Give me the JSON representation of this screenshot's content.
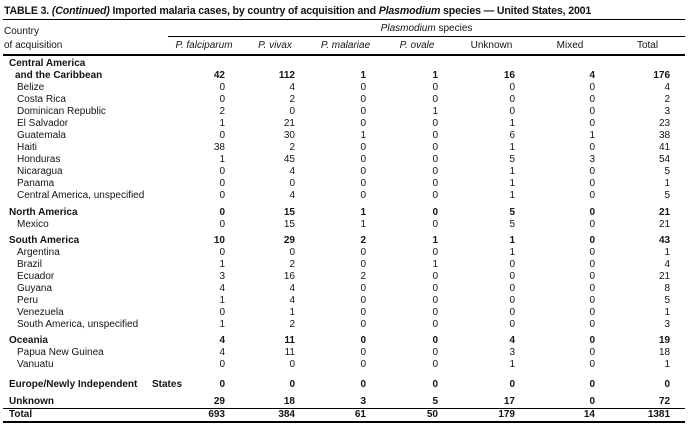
{
  "title": {
    "prefix": "TABLE 3. ",
    "continued": "(Continued)",
    "middle": " Imported malaria cases, by country of acquisition and ",
    "species_word": "Plasmodium",
    "suffix": " species — United States, 2001"
  },
  "header": {
    "country_line1": "Country",
    "country_line2": "of acquisition",
    "group_italic": "Plasmodium",
    "group_rest": " species",
    "columns": [
      {
        "label": "P. falciparum"
      },
      {
        "label": "P. vivax"
      },
      {
        "label": "P. malariae"
      },
      {
        "label": "P. ovale"
      },
      {
        "label": "Unknown"
      },
      {
        "label": "Mixed"
      },
      {
        "label": "Total"
      }
    ]
  },
  "rows": [
    {
      "label": "Central America",
      "indent": 0,
      "bold": true,
      "values": [
        "",
        "",
        "",
        "",
        "",
        "",
        ""
      ]
    },
    {
      "label": "and the Caribbean",
      "indent": 1,
      "bold": true,
      "values": [
        42,
        112,
        1,
        1,
        16,
        4,
        176
      ]
    },
    {
      "label": "Belize",
      "indent": 2,
      "bold": false,
      "values": [
        0,
        4,
        0,
        0,
        0,
        0,
        4
      ]
    },
    {
      "label": "Costa Rica",
      "indent": 2,
      "bold": false,
      "values": [
        0,
        2,
        0,
        0,
        0,
        0,
        2
      ]
    },
    {
      "label": "Dominican Republic",
      "indent": 2,
      "bold": false,
      "values": [
        2,
        0,
        0,
        1,
        0,
        0,
        3
      ]
    },
    {
      "label": "El Salvador",
      "indent": 2,
      "bold": false,
      "values": [
        1,
        21,
        0,
        0,
        1,
        0,
        23
      ]
    },
    {
      "label": "Guatemala",
      "indent": 2,
      "bold": false,
      "values": [
        0,
        30,
        1,
        0,
        6,
        1,
        38
      ]
    },
    {
      "label": "Haiti",
      "indent": 2,
      "bold": false,
      "values": [
        38,
        2,
        0,
        0,
        1,
        0,
        41
      ]
    },
    {
      "label": "Honduras",
      "indent": 2,
      "bold": false,
      "values": [
        1,
        45,
        0,
        0,
        5,
        3,
        54
      ]
    },
    {
      "label": "Nicaragua",
      "indent": 2,
      "bold": false,
      "values": [
        0,
        4,
        0,
        0,
        1,
        0,
        5
      ]
    },
    {
      "label": "Panama",
      "indent": 2,
      "bold": false,
      "values": [
        0,
        0,
        0,
        0,
        1,
        0,
        1
      ]
    },
    {
      "label": "Central America, unspecified",
      "indent": 2,
      "bold": false,
      "values": [
        0,
        4,
        0,
        0,
        1,
        0,
        5
      ]
    },
    {
      "label": "North America",
      "indent": 0,
      "bold": true,
      "gap_before": 5,
      "values": [
        0,
        15,
        1,
        0,
        5,
        0,
        21
      ]
    },
    {
      "label": "Mexico",
      "indent": 2,
      "bold": false,
      "values": [
        0,
        15,
        1,
        0,
        5,
        0,
        21
      ]
    },
    {
      "label": "South America",
      "indent": 0,
      "bold": true,
      "gap_before": 4,
      "values": [
        10,
        29,
        2,
        1,
        1,
        0,
        43
      ]
    },
    {
      "label": "Argentina",
      "indent": 2,
      "bold": false,
      "values": [
        0,
        0,
        0,
        0,
        1,
        0,
        1
      ]
    },
    {
      "label": "Brazil",
      "indent": 2,
      "bold": false,
      "values": [
        1,
        2,
        0,
        1,
        0,
        0,
        4
      ]
    },
    {
      "label": "Ecuador",
      "indent": 2,
      "bold": false,
      "values": [
        3,
        16,
        2,
        0,
        0,
        0,
        21
      ]
    },
    {
      "label": "Guyana",
      "indent": 2,
      "bold": false,
      "values": [
        4,
        4,
        0,
        0,
        0,
        0,
        8
      ]
    },
    {
      "label": "Peru",
      "indent": 2,
      "bold": false,
      "values": [
        1,
        4,
        0,
        0,
        0,
        0,
        5
      ]
    },
    {
      "label": "Venezuela",
      "indent": 2,
      "bold": false,
      "values": [
        0,
        1,
        0,
        0,
        0,
        0,
        1
      ]
    },
    {
      "label": "South America, unspecified",
      "indent": 2,
      "bold": false,
      "values": [
        1,
        2,
        0,
        0,
        0,
        0,
        3
      ]
    },
    {
      "label": "Oceania",
      "indent": 0,
      "bold": true,
      "gap_before": 4,
      "values": [
        4,
        11,
        0,
        0,
        4,
        0,
        19
      ]
    },
    {
      "label": "Papua New Guinea",
      "indent": 2,
      "bold": false,
      "values": [
        4,
        11,
        0,
        0,
        3,
        0,
        18
      ]
    },
    {
      "label": "Vanuatu",
      "indent": 2,
      "bold": false,
      "values": [
        0,
        0,
        0,
        0,
        1,
        0,
        1
      ]
    },
    {
      "label": "Europe/Newly Independent",
      "label2": "States",
      "indent": 0,
      "bold": true,
      "gap_before": 8,
      "values": [
        0,
        0,
        0,
        0,
        0,
        0,
        0
      ]
    },
    {
      "label": "Unknown",
      "indent": 0,
      "bold": true,
      "gap_before": 5,
      "values": [
        29,
        18,
        3,
        5,
        17,
        0,
        72
      ]
    },
    {
      "label": "Total",
      "indent": 0,
      "bold": true,
      "total": true,
      "values": [
        693,
        384,
        61,
        50,
        179,
        14,
        1381
      ]
    }
  ]
}
